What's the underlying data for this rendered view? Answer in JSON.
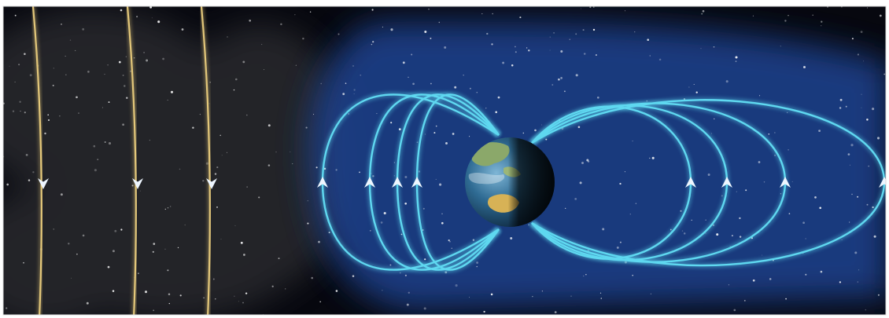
{
  "scene": {
    "subject": "earth-magnetosphere-solar-wind",
    "colors": {
      "space": "#07080f",
      "space_haze": "#3a3a3e",
      "magnetosphere_glow": "#1d3f8a",
      "field_line": "#5fd8f0",
      "solar_wind_line": "#e3c77a",
      "arrow": "#eef6ff",
      "frame": "#ffffff"
    },
    "icons": {
      "planet": "earth-icon",
      "field_arrow": "arrow-up-icon",
      "wind_arrow": "arrow-down-icon"
    },
    "solar_wind_line_count": 3,
    "dayside_field_loop_count": 4,
    "nightside_field_loop_count": 4
  }
}
